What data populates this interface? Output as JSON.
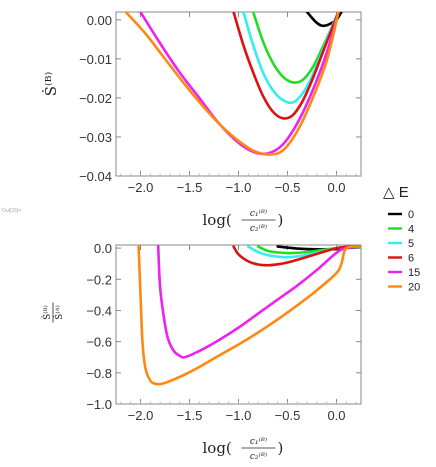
{
  "figure_label": "Out[15]=",
  "legend": {
    "title": "△ E",
    "entries": [
      {
        "label": "0",
        "color": "#000000"
      },
      {
        "label": "4",
        "color": "#22dd22"
      },
      {
        "label": "5",
        "color": "#33eeee"
      },
      {
        "label": "6",
        "color": "#dd1111"
      },
      {
        "label": "15",
        "color": "#ee22ee"
      },
      {
        "label": "20",
        "color": "#ff8811"
      }
    ]
  },
  "chart_data": [
    {
      "type": "line",
      "xlim": [
        -2.25,
        0.25
      ],
      "ylim": [
        -0.04,
        0.002
      ],
      "xticks": [
        -2.0,
        -1.5,
        -1.0,
        -0.5,
        0.0
      ],
      "xtick_labels": [
        "−2.0",
        "−1.5",
        "−1.0",
        "−0.5",
        "0.0"
      ],
      "yticks": [
        0.0,
        -0.01,
        -0.02,
        -0.03,
        -0.04
      ],
      "ytick_labels": [
        "0.00",
        "−0.01",
        "−0.02",
        "−0.03",
        "−0.04"
      ],
      "xlabel": "log(c1(B)/c2(B))",
      "ylabel": "Ṡ(B)",
      "series": [
        {
          "name": "0",
          "x": [
            -0.3,
            -0.25,
            -0.2,
            -0.15,
            -0.1,
            -0.05,
            0.0,
            0.05
          ],
          "y": [
            0.002,
            0.0005,
            -0.0008,
            -0.0015,
            -0.0014,
            -0.0008,
            0.0,
            0.002
          ]
        },
        {
          "name": "4",
          "x": [
            -0.85,
            -0.75,
            -0.65,
            -0.55,
            -0.45,
            -0.35,
            -0.25,
            -0.15,
            -0.05,
            0.02
          ],
          "y": [
            0.002,
            -0.0055,
            -0.011,
            -0.0145,
            -0.016,
            -0.0155,
            -0.0125,
            -0.0075,
            -0.002,
            0.002
          ]
        },
        {
          "name": "5",
          "x": [
            -0.95,
            -0.85,
            -0.75,
            -0.65,
            -0.55,
            -0.45,
            -0.35,
            -0.25,
            -0.15,
            -0.05,
            0.02
          ],
          "y": [
            0.002,
            -0.0065,
            -0.0135,
            -0.018,
            -0.0205,
            -0.0212,
            -0.019,
            -0.0145,
            -0.0085,
            -0.002,
            0.002
          ]
        },
        {
          "name": "6",
          "x": [
            -1.05,
            -0.95,
            -0.85,
            -0.75,
            -0.65,
            -0.55,
            -0.45,
            -0.35,
            -0.25,
            -0.15,
            -0.05,
            0.02
          ],
          "y": [
            0.002,
            -0.0065,
            -0.0135,
            -0.0195,
            -0.0235,
            -0.0252,
            -0.0245,
            -0.021,
            -0.0155,
            -0.009,
            -0.0025,
            0.002
          ]
        },
        {
          "name": "15",
          "x": [
            -2.0,
            -1.8,
            -1.6,
            -1.4,
            -1.2,
            -1.0,
            -0.85,
            -0.7,
            -0.55,
            -0.4,
            -0.25,
            -0.1,
            0.02
          ],
          "y": [
            0.002,
            -0.006,
            -0.0135,
            -0.02,
            -0.0265,
            -0.0315,
            -0.0338,
            -0.0342,
            -0.032,
            -0.0265,
            -0.0185,
            -0.0085,
            0.002
          ]
        },
        {
          "name": "20",
          "x": [
            -2.15,
            -1.95,
            -1.75,
            -1.55,
            -1.35,
            -1.15,
            -1.0,
            -0.85,
            -0.7,
            -0.55,
            -0.4,
            -0.25,
            -0.1,
            0.02
          ],
          "y": [
            0.002,
            -0.0035,
            -0.01,
            -0.0165,
            -0.0225,
            -0.0278,
            -0.031,
            -0.0335,
            -0.0345,
            -0.0335,
            -0.0285,
            -0.0205,
            -0.0105,
            0.002
          ]
        }
      ]
    },
    {
      "type": "line",
      "xlim": [
        -2.25,
        0.25
      ],
      "ylim": [
        -1.0,
        0.02
      ],
      "xticks": [
        -2.0,
        -1.5,
        -1.0,
        -0.5,
        0.0
      ],
      "xtick_labels": [
        "−2.0",
        "−1.5",
        "−1.0",
        "−0.5",
        "0.0"
      ],
      "yticks": [
        0.0,
        -0.2,
        -0.4,
        -0.6,
        -0.8,
        -1.0
      ],
      "ytick_labels": [
        "0.0",
        "−0.2",
        "−0.4",
        "−0.6",
        "−0.8",
        "−1.0"
      ],
      "xlabel": "log(c1(B)/c2(B))",
      "ylabel": "Ṡ(B)/Ṡ(A)",
      "series": [
        {
          "name": "0",
          "x": [
            -0.6,
            -0.4,
            -0.2,
            0.0,
            0.1,
            0.2,
            0.25
          ],
          "y": [
            0.01,
            -0.003,
            -0.008,
            -0.006,
            0.0,
            0.004,
            0.005
          ]
        },
        {
          "name": "4",
          "x": [
            -0.8,
            -0.7,
            -0.6,
            -0.5,
            -0.4,
            -0.3,
            -0.2,
            -0.1,
            0.0,
            0.1,
            0.25
          ],
          "y": [
            0.01,
            -0.018,
            -0.028,
            -0.032,
            -0.03,
            -0.025,
            -0.017,
            -0.008,
            0.0,
            0.004,
            0.006
          ]
        },
        {
          "name": "5",
          "x": [
            -0.9,
            -0.8,
            -0.7,
            -0.6,
            -0.5,
            -0.4,
            -0.3,
            -0.2,
            -0.1,
            0.0,
            0.1,
            0.25
          ],
          "y": [
            0.01,
            -0.025,
            -0.045,
            -0.055,
            -0.058,
            -0.053,
            -0.043,
            -0.03,
            -0.015,
            0.0,
            0.006,
            0.01
          ]
        },
        {
          "name": "6",
          "x": [
            -1.05,
            -1.0,
            -0.9,
            -0.8,
            -0.7,
            -0.6,
            -0.5,
            -0.4,
            -0.3,
            -0.2,
            -0.1,
            0.0,
            0.1,
            0.25
          ],
          "y": [
            0.01,
            -0.04,
            -0.085,
            -0.105,
            -0.11,
            -0.104,
            -0.092,
            -0.075,
            -0.056,
            -0.037,
            -0.018,
            0.0,
            0.008,
            0.012
          ]
        },
        {
          "name": "15",
          "x": [
            -1.82,
            -1.8,
            -1.76,
            -1.72,
            -1.66,
            -1.6,
            -1.55,
            -1.4,
            -1.2,
            -1.0,
            -0.8,
            -0.6,
            -0.4,
            -0.2,
            0.0,
            0.1,
            0.25
          ],
          "y": [
            0.02,
            -0.25,
            -0.45,
            -0.58,
            -0.66,
            -0.69,
            -0.7,
            -0.66,
            -0.59,
            -0.51,
            -0.42,
            -0.33,
            -0.24,
            -0.14,
            -0.03,
            0.0,
            0.01
          ]
        },
        {
          "name": "20",
          "x": [
            -2.02,
            -2.0,
            -1.98,
            -1.95,
            -1.9,
            -1.85,
            -1.78,
            -1.65,
            -1.45,
            -1.2,
            -0.95,
            -0.7,
            -0.45,
            -0.2,
            0.0,
            0.05,
            0.1,
            0.25
          ],
          "y": [
            0.02,
            -0.3,
            -0.6,
            -0.77,
            -0.85,
            -0.87,
            -0.87,
            -0.84,
            -0.78,
            -0.69,
            -0.6,
            -0.5,
            -0.39,
            -0.27,
            -0.16,
            -0.1,
            0.0,
            0.01
          ]
        }
      ]
    }
  ]
}
